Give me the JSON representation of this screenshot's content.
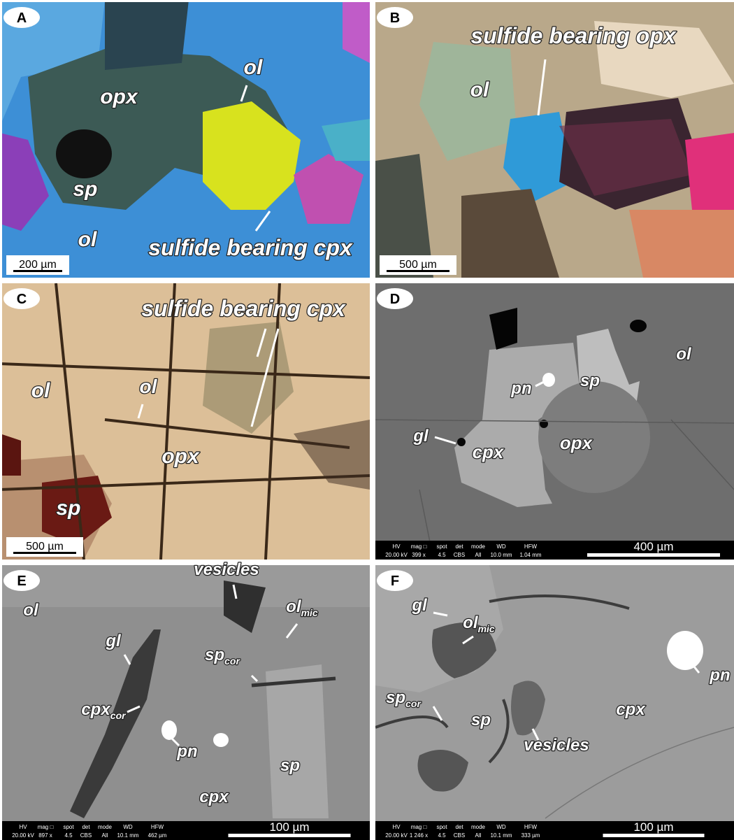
{
  "panels": [
    {
      "letter": "A",
      "labels": [
        "opx",
        "ol",
        "sp",
        "ol",
        "sulfide bearing cpx"
      ],
      "scale_bar": "200 µm"
    },
    {
      "letter": "B",
      "labels": [
        "sulfide bearing opx",
        "ol"
      ],
      "scale_bar": "500 µm"
    },
    {
      "letter": "C",
      "labels": [
        "sulfide bearing cpx",
        "ol",
        "ol",
        "opx",
        "sp"
      ],
      "scale_bar": "500 µm"
    },
    {
      "letter": "D",
      "labels": [
        "ol",
        "pn",
        "sp",
        "gl",
        "cpx",
        "opx"
      ],
      "scale_bar": "400 µm",
      "info_bar": {
        "headers": [
          "HV",
          "mag □",
          "spot",
          "det",
          "mode",
          "WD",
          "HFW"
        ],
        "values": [
          "20.00 kV",
          "399 x",
          "4.5",
          "CBS",
          "All",
          "10.0 mm",
          "1.04 mm"
        ]
      }
    },
    {
      "letter": "E",
      "labels": [
        "vesicles",
        "ol",
        {
          "main": "ol",
          "sub": "mic"
        },
        "gl",
        {
          "main": "sp",
          "sub": "cor"
        },
        {
          "main": "cpx",
          "sub": "cor"
        },
        "pn",
        "sp",
        "cpx"
      ],
      "scale_bar": "100 µm",
      "info_bar": {
        "headers": [
          "HV",
          "mag □",
          "spot",
          "det",
          "mode",
          "WD",
          "HFW"
        ],
        "values": [
          "20.00 kV",
          "897 x",
          "4.5",
          "CBS",
          "All",
          "10.1 mm",
          "462 µm"
        ]
      }
    },
    {
      "letter": "F",
      "labels": [
        "gl",
        {
          "main": "ol",
          "sub": "mic"
        },
        "pn",
        {
          "main": "sp",
          "sub": "cor"
        },
        "sp",
        "cpx",
        "vesicles"
      ],
      "scale_bar": "100 µm",
      "info_bar": {
        "headers": [
          "HV",
          "mag □",
          "spot",
          "det",
          "mode",
          "WD",
          "HFW"
        ],
        "values": [
          "20.00 kV",
          "1 246 x",
          "4.5",
          "CBS",
          "All",
          "10.1 mm",
          "333 µm"
        ]
      }
    }
  ]
}
